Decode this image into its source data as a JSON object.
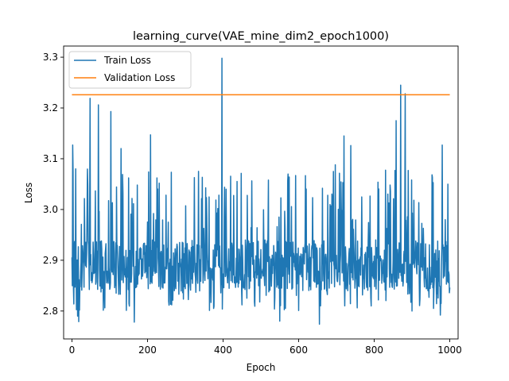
{
  "chart_data": {
    "type": "line",
    "title": "learning_curve(VAE_mine_dim2_epoch1000)",
    "xlabel": "Epoch",
    "ylabel": "Loss",
    "xlim": [
      -22,
      1022
    ],
    "ylim": [
      2.745,
      3.322
    ],
    "x_ticks": [
      0,
      200,
      400,
      600,
      800,
      1000
    ],
    "y_ticks": [
      2.8,
      2.9,
      3.0,
      3.1,
      3.2,
      3.3
    ],
    "x_tick_labels": [
      "0",
      "200",
      "400",
      "600",
      "800",
      "1000"
    ],
    "y_tick_labels": [
      "2.8",
      "2.9",
      "3.0",
      "3.1",
      "3.2",
      "3.3"
    ],
    "grid": false,
    "legend_position": "top-left",
    "series": [
      {
        "name": "Train Loss",
        "color": "#1f77b4",
        "noisy": true,
        "x_range": [
          0,
          1000
        ],
        "baseline": 2.89,
        "noise_low": 2.775,
        "noise_high": 3.3,
        "spikes": [
          {
            "x": 2,
            "y": 3.127
          },
          {
            "x": 10,
            "y": 3.08
          },
          {
            "x": 15,
            "y": 2.79
          },
          {
            "x": 18,
            "y": 2.779
          },
          {
            "x": 48,
            "y": 3.219
          },
          {
            "x": 70,
            "y": 3.206
          },
          {
            "x": 103,
            "y": 3.193
          },
          {
            "x": 130,
            "y": 3.12
          },
          {
            "x": 165,
            "y": 2.778
          },
          {
            "x": 208,
            "y": 3.147
          },
          {
            "x": 397,
            "y": 3.298
          },
          {
            "x": 520,
            "y": 3.058
          },
          {
            "x": 550,
            "y": 2.78
          },
          {
            "x": 655,
            "y": 2.774
          },
          {
            "x": 697,
            "y": 3.088
          },
          {
            "x": 720,
            "y": 3.145
          },
          {
            "x": 738,
            "y": 3.126
          },
          {
            "x": 858,
            "y": 3.175
          },
          {
            "x": 870,
            "y": 3.245
          },
          {
            "x": 882,
            "y": 3.228
          },
          {
            "x": 900,
            "y": 2.8
          },
          {
            "x": 975,
            "y": 2.792
          },
          {
            "x": 980,
            "y": 3.127
          },
          {
            "x": 995,
            "y": 3.05
          }
        ]
      },
      {
        "name": "Validation Loss",
        "color": "#ff7f0e",
        "x": [
          0,
          1000
        ],
        "y": [
          3.226,
          3.226
        ]
      }
    ]
  }
}
